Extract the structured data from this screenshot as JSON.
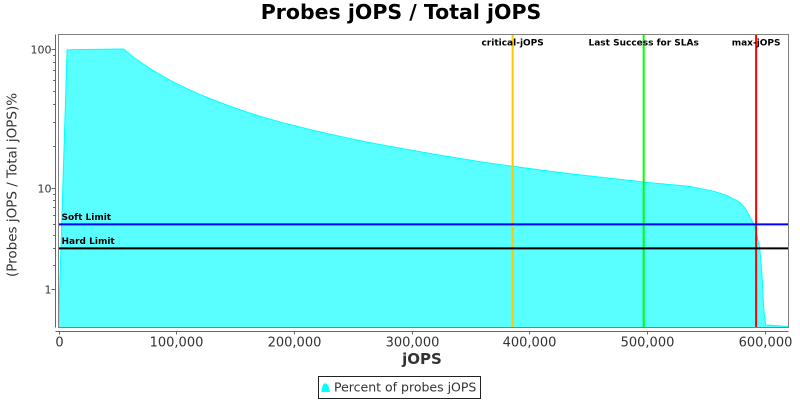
{
  "chart_data": {
    "type": "area",
    "title": "Probes jOPS / Total jOPS",
    "xlabel": "jOPS",
    "ylabel": "(Probes jOPS / Total jOPS)%",
    "x_axis": {
      "min": 0,
      "max": 620000,
      "major_tick_values": [
        0,
        100000,
        200000,
        300000,
        400000,
        500000,
        600000
      ],
      "major_tick_labels": [
        "0",
        "100,000",
        "200,000",
        "300,000",
        "400,000",
        "500,000",
        "600,000"
      ]
    },
    "y_axis": {
      "scale": "logarithmic-adjusted",
      "min": 0,
      "max": 126.9,
      "major_tick_values": [
        100,
        10,
        1
      ],
      "major_tick_labels": [
        "100",
        "10",
        "1"
      ],
      "minor_tick_values": [
        90,
        80,
        70,
        60,
        50,
        40,
        30,
        20,
        9,
        8,
        7,
        6,
        5,
        4,
        3,
        2
      ]
    },
    "series": [
      {
        "name": "Percent of probes jOPS",
        "color": "#00FFFF",
        "fill_opacity": 0.65,
        "points": [
          [
            0,
            0.02
          ],
          [
            7300,
            98.5
          ],
          [
            20000,
            99.0
          ],
          [
            40000,
            99.5
          ],
          [
            55300,
            99.9
          ],
          [
            60000,
            92.5
          ],
          [
            65000,
            85.5
          ],
          [
            70000,
            80.0
          ],
          [
            75000,
            74.8
          ],
          [
            80000,
            70.3
          ],
          [
            85000,
            66.3
          ],
          [
            90000,
            62.7
          ],
          [
            95000,
            59.4
          ],
          [
            100000,
            56.5
          ],
          [
            110000,
            51.4
          ],
          [
            120000,
            47.1
          ],
          [
            130000,
            43.5
          ],
          [
            140000,
            40.4
          ],
          [
            150000,
            37.7
          ],
          [
            160000,
            35.2
          ],
          [
            170000,
            33.1
          ],
          [
            180000,
            31.3
          ],
          [
            190000,
            29.6
          ],
          [
            200000,
            28.2
          ],
          [
            215000,
            26.2
          ],
          [
            230000,
            24.5
          ],
          [
            245000,
            23.0
          ],
          [
            260000,
            21.6
          ],
          [
            280000,
            20.1
          ],
          [
            300000,
            18.75
          ],
          [
            320000,
            17.5
          ],
          [
            340000,
            16.4
          ],
          [
            360000,
            15.4
          ],
          [
            380000,
            14.6
          ],
          [
            400000,
            13.85
          ],
          [
            420000,
            13.15
          ],
          [
            440000,
            12.55
          ],
          [
            460000,
            12.0
          ],
          [
            480000,
            11.5
          ],
          [
            500000,
            11.0
          ],
          [
            520000,
            10.6
          ],
          [
            536000,
            10.3
          ],
          [
            557500,
            9.4
          ],
          [
            568000,
            8.7
          ],
          [
            578700,
            7.7
          ],
          [
            583000,
            6.9
          ],
          [
            587200,
            5.8
          ],
          [
            590400,
            5.0
          ],
          [
            592000,
            4.6
          ],
          [
            593500,
            3.8
          ],
          [
            595600,
            3.0
          ],
          [
            597300,
            1.7
          ],
          [
            599000,
            0.4
          ],
          [
            600500,
            0.05
          ],
          [
            619500,
            0.02
          ]
        ]
      }
    ],
    "domain_markers": [
      {
        "label": "critical-jOPS",
        "value": 385700,
        "color": "#FFC800"
      },
      {
        "label": "Last Success for SLAs",
        "value": 497000,
        "color": "#00FF00"
      },
      {
        "label": "max-jOPS",
        "value": 592500,
        "color": "#FF0000"
      }
    ],
    "range_markers": [
      {
        "label": "Soft Limit",
        "value": 5,
        "color": "#0000FF"
      },
      {
        "label": "Hard Limit",
        "value": 3,
        "color": "#000000"
      }
    ],
    "legend": {
      "position": "bottom",
      "items": [
        {
          "label": "Percent of probes jOPS",
          "color": "#00FFFF"
        }
      ]
    },
    "frame_color": "#808080",
    "axis_line_color": "#666666",
    "tick_label_color": "#333333",
    "background_color": "#FFFFFF"
  }
}
